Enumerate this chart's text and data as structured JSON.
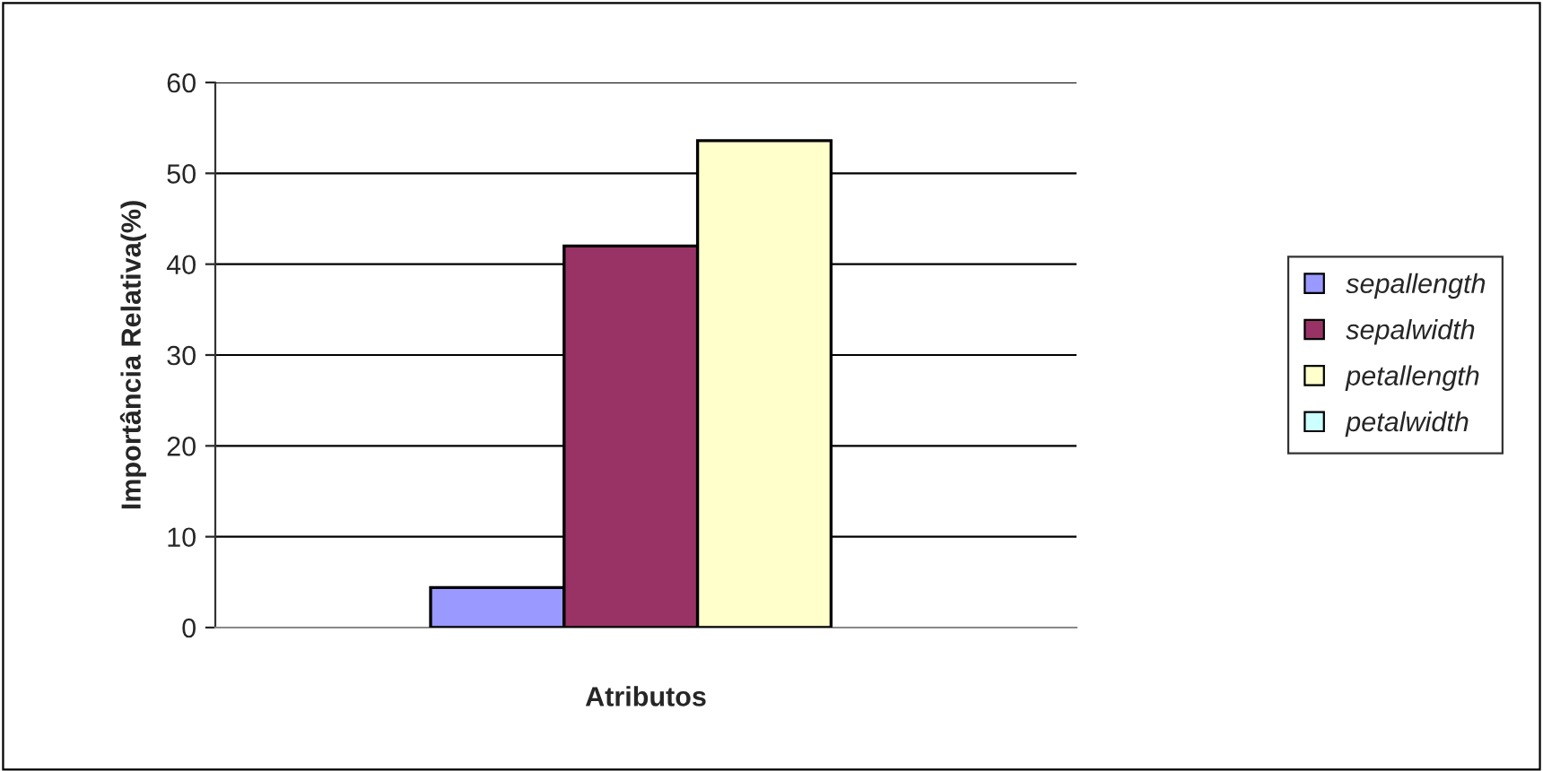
{
  "chart_data": {
    "type": "bar",
    "xlabel": "Atributos",
    "ylabel": "Importância Relativa(%)",
    "categories": [
      null
    ],
    "series": [
      {
        "name": "sepallength",
        "color": "#9999ff",
        "values": [
          4.4
        ]
      },
      {
        "name": "sepalwidth",
        "color": "#993366",
        "values": [
          42.0
        ]
      },
      {
        "name": "petallength",
        "color": "#ffffcc",
        "values": [
          53.6
        ]
      },
      {
        "name": "petalwidth",
        "color": "#ccffff",
        "values": [
          0
        ]
      }
    ],
    "ylim": [
      0,
      60
    ],
    "yticks": [
      0,
      10,
      20,
      30,
      40,
      50,
      60
    ],
    "grid": "y",
    "legend": "right"
  }
}
